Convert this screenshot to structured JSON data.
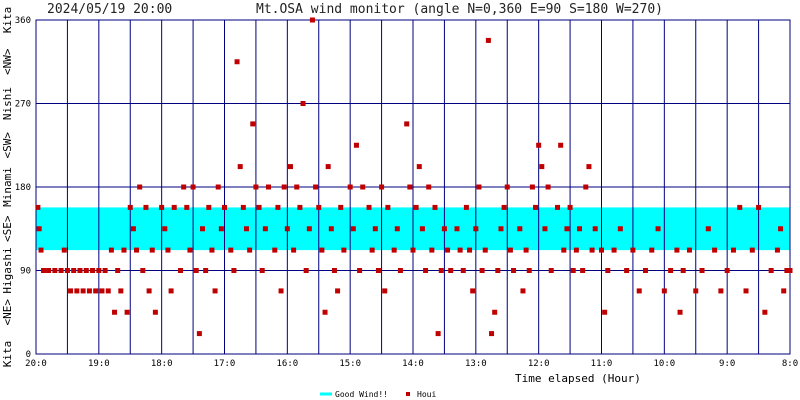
{
  "chart_data": {
    "type": "scatter",
    "timestamp": "2024/05/19 20:00",
    "title": "Mt.OSA wind monitor (angle N=0,360 E=90 S=180 W=270)",
    "xlabel": "Time elapsed (Hour)",
    "x_tick_labels": [
      "20:0",
      "19:0",
      "18:0",
      "17:0",
      "16:0",
      "15:0",
      "14:0",
      "13:0",
      "12:0",
      "11:0",
      "10:0",
      "9:0",
      "8:0"
    ],
    "y_tick_labels": [
      "0",
      "90",
      "180",
      "270",
      "360"
    ],
    "y_direction_labels": [
      "Kita",
      "<NE>",
      "Higashi",
      "<SE>",
      "Minami",
      "<SW>",
      "Nishi",
      "<NW>",
      "Kita"
    ],
    "xlim": [
      0,
      12
    ],
    "ylim": [
      0,
      360
    ],
    "good_wind_band": [
      112,
      158
    ],
    "legend": {
      "position": "bottom-center",
      "entries": [
        {
          "label": "Good Wind!!",
          "color": "#00ffff",
          "marker": "line"
        },
        {
          "label": "Houi",
          "color": "#c00000",
          "marker": "square"
        }
      ]
    },
    "series": [
      {
        "name": "Houi",
        "color": "#c00000",
        "points": [
          [
            0.03,
            158
          ],
          [
            0.05,
            135
          ],
          [
            0.08,
            112
          ],
          [
            0.12,
            90
          ],
          [
            0.2,
            90
          ],
          [
            0.3,
            90
          ],
          [
            0.4,
            90
          ],
          [
            0.45,
            112
          ],
          [
            0.5,
            90
          ],
          [
            0.55,
            68
          ],
          [
            0.6,
            90
          ],
          [
            0.65,
            68
          ],
          [
            0.7,
            90
          ],
          [
            0.75,
            68
          ],
          [
            0.8,
            90
          ],
          [
            0.85,
            68
          ],
          [
            0.9,
            90
          ],
          [
            0.95,
            68
          ],
          [
            1.0,
            90
          ],
          [
            1.05,
            68
          ],
          [
            1.1,
            90
          ],
          [
            1.15,
            68
          ],
          [
            1.2,
            112
          ],
          [
            1.25,
            45
          ],
          [
            1.3,
            90
          ],
          [
            1.35,
            68
          ],
          [
            1.4,
            112
          ],
          [
            1.45,
            45
          ],
          [
            1.5,
            158
          ],
          [
            1.55,
            135
          ],
          [
            1.6,
            112
          ],
          [
            1.65,
            180
          ],
          [
            1.7,
            90
          ],
          [
            1.75,
            158
          ],
          [
            1.8,
            68
          ],
          [
            1.85,
            112
          ],
          [
            1.9,
            45
          ],
          [
            2.0,
            158
          ],
          [
            2.05,
            135
          ],
          [
            2.1,
            112
          ],
          [
            2.15,
            68
          ],
          [
            2.2,
            158
          ],
          [
            2.3,
            90
          ],
          [
            2.35,
            180
          ],
          [
            2.4,
            158
          ],
          [
            2.45,
            112
          ],
          [
            2.5,
            180
          ],
          [
            2.55,
            90
          ],
          [
            2.6,
            22
          ],
          [
            2.65,
            135
          ],
          [
            2.7,
            90
          ],
          [
            2.75,
            158
          ],
          [
            2.8,
            112
          ],
          [
            2.85,
            68
          ],
          [
            2.9,
            180
          ],
          [
            2.95,
            135
          ],
          [
            3.0,
            158
          ],
          [
            3.1,
            112
          ],
          [
            3.15,
            90
          ],
          [
            3.2,
            315
          ],
          [
            3.25,
            202
          ],
          [
            3.3,
            158
          ],
          [
            3.35,
            135
          ],
          [
            3.4,
            112
          ],
          [
            3.45,
            248
          ],
          [
            3.5,
            180
          ],
          [
            3.55,
            158
          ],
          [
            3.6,
            90
          ],
          [
            3.65,
            135
          ],
          [
            3.7,
            180
          ],
          [
            3.8,
            112
          ],
          [
            3.85,
            158
          ],
          [
            3.9,
            68
          ],
          [
            3.95,
            180
          ],
          [
            4.0,
            135
          ],
          [
            4.05,
            202
          ],
          [
            4.1,
            112
          ],
          [
            4.15,
            180
          ],
          [
            4.2,
            158
          ],
          [
            4.25,
            270
          ],
          [
            4.3,
            90
          ],
          [
            4.35,
            135
          ],
          [
            4.4,
            360
          ],
          [
            4.45,
            180
          ],
          [
            4.5,
            158
          ],
          [
            4.55,
            112
          ],
          [
            4.6,
            45
          ],
          [
            4.65,
            202
          ],
          [
            4.7,
            135
          ],
          [
            4.75,
            90
          ],
          [
            4.8,
            68
          ],
          [
            4.85,
            158
          ],
          [
            4.9,
            112
          ],
          [
            5.0,
            180
          ],
          [
            5.05,
            135
          ],
          [
            5.1,
            225
          ],
          [
            5.15,
            90
          ],
          [
            5.2,
            180
          ],
          [
            5.3,
            158
          ],
          [
            5.35,
            112
          ],
          [
            5.4,
            135
          ],
          [
            5.45,
            90
          ],
          [
            5.5,
            180
          ],
          [
            5.55,
            68
          ],
          [
            5.6,
            158
          ],
          [
            5.7,
            112
          ],
          [
            5.75,
            135
          ],
          [
            5.8,
            90
          ],
          [
            5.9,
            248
          ],
          [
            5.95,
            180
          ],
          [
            6.0,
            112
          ],
          [
            6.05,
            158
          ],
          [
            6.1,
            202
          ],
          [
            6.15,
            135
          ],
          [
            6.2,
            90
          ],
          [
            6.25,
            180
          ],
          [
            6.3,
            112
          ],
          [
            6.35,
            158
          ],
          [
            6.4,
            22
          ],
          [
            6.45,
            90
          ],
          [
            6.5,
            135
          ],
          [
            6.55,
            112
          ],
          [
            6.6,
            90
          ],
          [
            6.7,
            135
          ],
          [
            6.75,
            112
          ],
          [
            6.8,
            90
          ],
          [
            6.85,
            158
          ],
          [
            6.9,
            112
          ],
          [
            6.95,
            68
          ],
          [
            7.0,
            135
          ],
          [
            7.05,
            180
          ],
          [
            7.1,
            90
          ],
          [
            7.15,
            112
          ],
          [
            7.2,
            338
          ],
          [
            7.25,
            22
          ],
          [
            7.3,
            45
          ],
          [
            7.35,
            90
          ],
          [
            7.4,
            135
          ],
          [
            7.45,
            158
          ],
          [
            7.5,
            180
          ],
          [
            7.55,
            112
          ],
          [
            7.6,
            90
          ],
          [
            7.7,
            135
          ],
          [
            7.75,
            68
          ],
          [
            7.8,
            112
          ],
          [
            7.85,
            90
          ],
          [
            7.9,
            180
          ],
          [
            7.95,
            158
          ],
          [
            8.0,
            225
          ],
          [
            8.05,
            202
          ],
          [
            8.1,
            135
          ],
          [
            8.15,
            180
          ],
          [
            8.2,
            90
          ],
          [
            8.3,
            158
          ],
          [
            8.35,
            225
          ],
          [
            8.4,
            112
          ],
          [
            8.45,
            135
          ],
          [
            8.5,
            158
          ],
          [
            8.55,
            90
          ],
          [
            8.6,
            112
          ],
          [
            8.65,
            135
          ],
          [
            8.7,
            90
          ],
          [
            8.75,
            180
          ],
          [
            8.8,
            202
          ],
          [
            8.85,
            112
          ],
          [
            8.9,
            135
          ],
          [
            9.0,
            112
          ],
          [
            9.05,
            45
          ],
          [
            9.1,
            90
          ],
          [
            9.2,
            112
          ],
          [
            9.3,
            135
          ],
          [
            9.4,
            90
          ],
          [
            9.5,
            112
          ],
          [
            9.6,
            68
          ],
          [
            9.7,
            90
          ],
          [
            9.8,
            112
          ],
          [
            9.9,
            135
          ],
          [
            10.0,
            68
          ],
          [
            10.1,
            90
          ],
          [
            10.2,
            112
          ],
          [
            10.25,
            45
          ],
          [
            10.3,
            90
          ],
          [
            10.4,
            112
          ],
          [
            10.5,
            68
          ],
          [
            10.6,
            90
          ],
          [
            10.7,
            135
          ],
          [
            10.8,
            112
          ],
          [
            10.9,
            68
          ],
          [
            11.0,
            90
          ],
          [
            11.1,
            112
          ],
          [
            11.2,
            158
          ],
          [
            11.3,
            68
          ],
          [
            11.4,
            112
          ],
          [
            11.5,
            158
          ],
          [
            11.6,
            45
          ],
          [
            11.7,
            90
          ],
          [
            11.8,
            112
          ],
          [
            11.85,
            135
          ],
          [
            11.9,
            68
          ],
          [
            11.95,
            90
          ],
          [
            12.0,
            90
          ]
        ]
      }
    ]
  }
}
